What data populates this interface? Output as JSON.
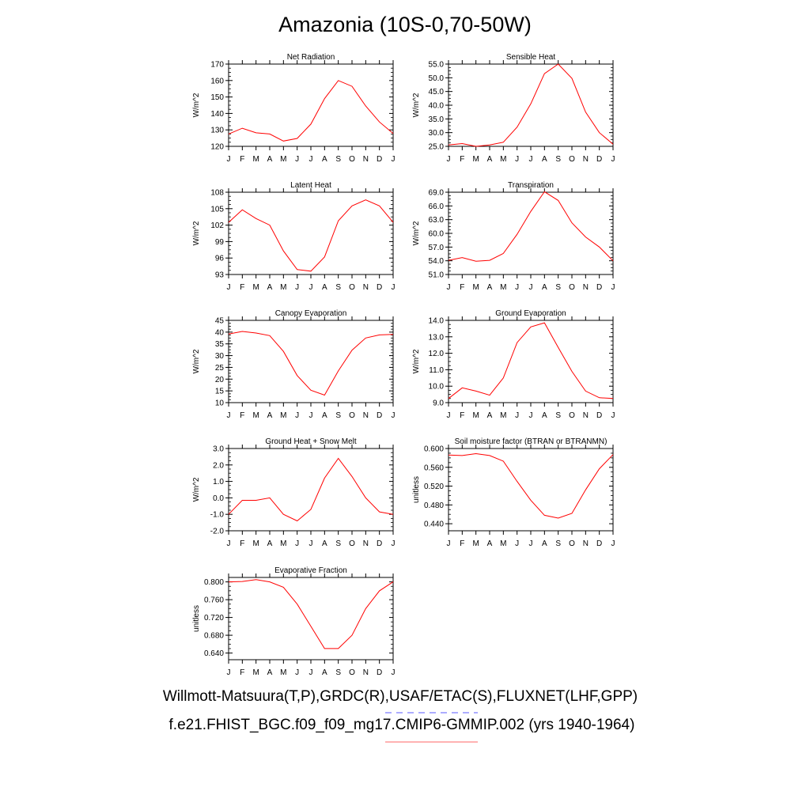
{
  "title": "Amazonia (10S-0,70-50W)",
  "footer": {
    "line1": "Willmott-Matsuura(T,P),GRDC(R),USAF/ETAC(S),FLUXNET(LHF,GPP)",
    "line2": "f.e21.FHIST_BGC.f09_f09_mg17.CMIP6-GMMIP.002 (yrs 1940-1964)"
  },
  "colors": {
    "line": "#ff0000",
    "dash_blue": "#5a5aff",
    "underline_red": "#ff6666",
    "axes": "#000000"
  },
  "chart_data": [
    {
      "type": "line",
      "title": "Net Radiation",
      "ylabel": "W/m^2",
      "x": [
        "J",
        "F",
        "M",
        "A",
        "M",
        "J",
        "J",
        "A",
        "S",
        "O",
        "N",
        "D",
        "J"
      ],
      "ylim": [
        120,
        170
      ],
      "yticks": [
        120,
        130,
        140,
        150,
        160,
        170
      ],
      "ytick_labels": [
        "120",
        "130",
        "140",
        "150",
        "160",
        "170"
      ],
      "series": [
        {
          "values": [
            127.5,
            131,
            128.2,
            127.5,
            123.2,
            124.8,
            133.5,
            149,
            160,
            156.5,
            144.5,
            134.8,
            127.8
          ]
        }
      ]
    },
    {
      "type": "line",
      "title": "Sensible Heat",
      "ylabel": "W/m^2",
      "x": [
        "J",
        "F",
        "M",
        "A",
        "M",
        "J",
        "J",
        "A",
        "S",
        "O",
        "N",
        "D",
        "J"
      ],
      "ylim": [
        25,
        55
      ],
      "yticks": [
        25,
        30,
        35,
        40,
        45,
        50,
        55
      ],
      "ytick_labels": [
        "25.0",
        "30.0",
        "35.0",
        "40.0",
        "45.0",
        "50.0",
        "55.0"
      ],
      "series": [
        {
          "values": [
            25.5,
            26,
            25,
            25.5,
            26.5,
            32,
            40.5,
            51.5,
            55,
            49.8,
            37.5,
            30,
            25.8
          ]
        }
      ]
    },
    {
      "type": "line",
      "title": "Latent Heat",
      "ylabel": "W/m^2",
      "x": [
        "J",
        "F",
        "M",
        "A",
        "M",
        "J",
        "J",
        "A",
        "S",
        "O",
        "N",
        "D",
        "J"
      ],
      "ylim": [
        93,
        108
      ],
      "yticks": [
        93,
        96,
        99,
        102,
        105,
        108
      ],
      "ytick_labels": [
        "93",
        "96",
        "99",
        "102",
        "105",
        "108"
      ],
      "series": [
        {
          "values": [
            102.5,
            104.8,
            103.2,
            102,
            97.3,
            93.9,
            93.6,
            96.2,
            102.8,
            105.5,
            106.6,
            105.5,
            102.5
          ]
        }
      ]
    },
    {
      "type": "line",
      "title": "Transpiration",
      "ylabel": "W/m^2",
      "x": [
        "J",
        "F",
        "M",
        "A",
        "M",
        "J",
        "J",
        "A",
        "S",
        "O",
        "N",
        "D",
        "J"
      ],
      "ylim": [
        51,
        69
      ],
      "yticks": [
        51,
        54,
        57,
        60,
        63,
        66,
        69
      ],
      "ytick_labels": [
        "51.0",
        "54.0",
        "57.0",
        "60.0",
        "63.0",
        "66.0",
        "69.0"
      ],
      "series": [
        {
          "values": [
            54.1,
            54.7,
            53.9,
            54.1,
            55.6,
            59.8,
            64.8,
            69.1,
            67.2,
            62.3,
            59.2,
            57,
            54
          ]
        }
      ]
    },
    {
      "type": "line",
      "title": "Canopy Evaporation",
      "ylabel": "W/m^2",
      "x": [
        "J",
        "F",
        "M",
        "A",
        "M",
        "J",
        "J",
        "A",
        "S",
        "O",
        "N",
        "D",
        "J"
      ],
      "ylim": [
        10,
        45
      ],
      "yticks": [
        10,
        15,
        20,
        25,
        30,
        35,
        40,
        45
      ],
      "ytick_labels": [
        "10",
        "15",
        "20",
        "25",
        "30",
        "35",
        "40",
        "45"
      ],
      "series": [
        {
          "values": [
            39.2,
            40.3,
            39.6,
            38.5,
            31.8,
            21.5,
            15.3,
            13.2,
            23.5,
            32.3,
            37.5,
            38.8,
            39
          ]
        }
      ]
    },
    {
      "type": "line",
      "title": "Ground Evaporation",
      "ylabel": "W/m^2",
      "x": [
        "J",
        "F",
        "M",
        "A",
        "M",
        "J",
        "J",
        "A",
        "S",
        "O",
        "N",
        "D",
        "J"
      ],
      "ylim": [
        9,
        14
      ],
      "yticks": [
        9,
        10,
        11,
        12,
        13,
        14
      ],
      "ytick_labels": [
        "9.0",
        "10.0",
        "11.0",
        "12.0",
        "13.0",
        "14.0"
      ],
      "series": [
        {
          "values": [
            9.25,
            9.9,
            9.7,
            9.45,
            10.5,
            12.65,
            13.6,
            13.85,
            12.35,
            10.9,
            9.7,
            9.3,
            9.25
          ]
        }
      ]
    },
    {
      "type": "line",
      "title": "Ground Heat + Snow Melt",
      "ylabel": "W/m^2",
      "x": [
        "J",
        "F",
        "M",
        "A",
        "M",
        "J",
        "J",
        "A",
        "S",
        "O",
        "N",
        "D",
        "J"
      ],
      "ylim": [
        -2,
        3
      ],
      "yticks": [
        -2,
        -1,
        0,
        1,
        2,
        3
      ],
      "ytick_labels": [
        "-2.0",
        "-1.0",
        "0.0",
        "1.0",
        "2.0",
        "3.0"
      ],
      "series": [
        {
          "values": [
            -1,
            -0.15,
            -0.15,
            0,
            -1,
            -1.4,
            -0.7,
            1.2,
            2.4,
            1.3,
            0,
            -0.85,
            -1
          ]
        }
      ]
    },
    {
      "type": "line",
      "title": "Soil moisture factor (BTRAN or BTRANMN)",
      "ylabel": "unitless",
      "x": [
        "J",
        "F",
        "M",
        "A",
        "M",
        "J",
        "J",
        "A",
        "S",
        "O",
        "N",
        "D",
        "J"
      ],
      "ylim": [
        0.425,
        0.6
      ],
      "yticks": [
        0.44,
        0.48,
        0.52,
        0.56,
        0.6
      ],
      "ytick_labels": [
        "0.440",
        "0.480",
        "0.520",
        "0.560",
        "0.600"
      ],
      "series": [
        {
          "values": [
            0.586,
            0.585,
            0.589,
            0.585,
            0.573,
            0.53,
            0.49,
            0.458,
            0.452,
            0.462,
            0.512,
            0.557,
            0.587
          ]
        }
      ]
    },
    {
      "type": "line",
      "title": "Evaporative Fraction",
      "ylabel": "unitless",
      "x": [
        "J",
        "F",
        "M",
        "A",
        "M",
        "J",
        "J",
        "A",
        "S",
        "O",
        "N",
        "D",
        "J"
      ],
      "ylim": [
        0.625,
        0.81
      ],
      "yticks": [
        0.64,
        0.68,
        0.72,
        0.76,
        0.8
      ],
      "ytick_labels": [
        "0.640",
        "0.680",
        "0.720",
        "0.760",
        "0.800"
      ],
      "series": [
        {
          "values": [
            0.8,
            0.801,
            0.805,
            0.8,
            0.788,
            0.75,
            0.7,
            0.65,
            0.65,
            0.68,
            0.74,
            0.78,
            0.8
          ]
        }
      ]
    }
  ]
}
